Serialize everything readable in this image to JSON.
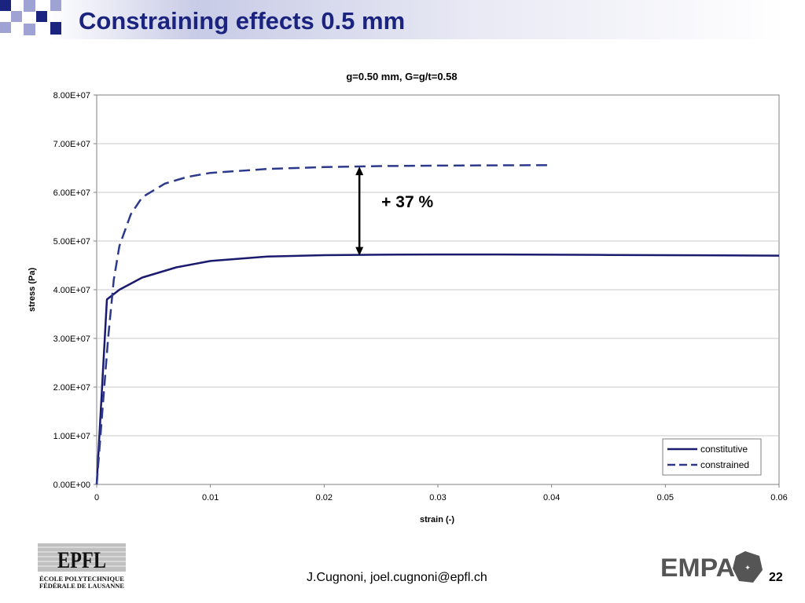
{
  "slide": {
    "title": "Constraining effects 0.5 mm",
    "footer_text": "J.Cugnoni, joel.cugnoni@epfl.ch",
    "page_number": "22",
    "left_logo": {
      "wordmark": "EPFL",
      "line1": "ÉCOLE   POLYTECHNIQUE",
      "line2": "FÉDÉRALE DE LAUSANNE"
    },
    "right_logo": {
      "wordmark": "EMPA"
    },
    "colors": {
      "title": "#1a237e",
      "series": "#1a1a6e",
      "deco_dark": "#1a237e",
      "deco_light": "#9fa3d4"
    }
  },
  "chart_data": {
    "type": "line",
    "title": "g=0.50 mm, G=g/t=0.58",
    "xlabel": "strain (-)",
    "ylabel": "stress (Pa)",
    "xlim": [
      0,
      0.06
    ],
    "ylim": [
      0,
      80000000
    ],
    "xticks": [
      "0",
      "0.01",
      "0.02",
      "0.03",
      "0.04",
      "0.05",
      "0.06"
    ],
    "yticks": [
      "0.00E+00",
      "1.00E+07",
      "2.00E+07",
      "3.00E+07",
      "4.00E+07",
      "5.00E+07",
      "6.00E+07",
      "7.00E+07",
      "8.00E+07"
    ],
    "grid": "horizontal",
    "legend_position": "bottom-right",
    "series": [
      {
        "name": "constitutive",
        "style": "solid",
        "x": [
          0,
          0.0009,
          0.002,
          0.004,
          0.007,
          0.01,
          0.015,
          0.02,
          0.025,
          0.03,
          0.035,
          0.04,
          0.045,
          0.05,
          0.055,
          0.06
        ],
        "y": [
          0,
          38000000,
          40000000,
          42500000,
          44600000,
          45900000,
          46800000,
          47100000,
          47200000,
          47250000,
          47250000,
          47200000,
          47150000,
          47100000,
          47050000,
          47000000
        ]
      },
      {
        "name": "constrained",
        "style": "dashed",
        "x": [
          0,
          0.0005,
          0.001,
          0.0015,
          0.002,
          0.003,
          0.004,
          0.006,
          0.008,
          0.01,
          0.015,
          0.02,
          0.025,
          0.03,
          0.035,
          0.04
        ],
        "y": [
          0,
          15000000,
          30000000,
          42000000,
          49000000,
          55500000,
          59000000,
          61800000,
          63200000,
          64000000,
          64800000,
          65200000,
          65400000,
          65500000,
          65550000,
          65600000
        ]
      }
    ],
    "annotation": {
      "text": "+ 37 %",
      "x": 0.0231,
      "y_top": 65300000,
      "y_bottom": 47000000
    }
  }
}
